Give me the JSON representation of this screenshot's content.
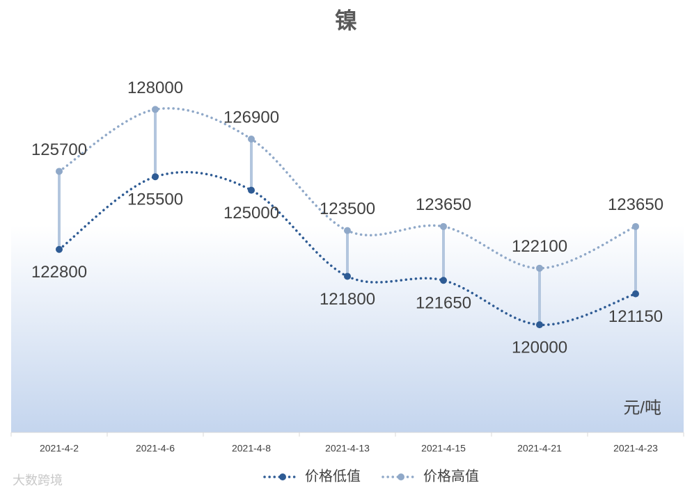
{
  "chart_data": {
    "type": "line",
    "title": "镍",
    "categories": [
      "2021-4-2",
      "2021-4-6",
      "2021-4-8",
      "2021-4-13",
      "2021-4-15",
      "2021-4-21",
      "2021-4-23"
    ],
    "series": [
      {
        "name": "价格低值",
        "color": "#2e5b94",
        "values": [
          122800,
          125500,
          125000,
          121800,
          121650,
          120000,
          121150
        ]
      },
      {
        "name": "价格高值",
        "color": "#8fa8c8",
        "values": [
          125700,
          128000,
          126900,
          123500,
          123650,
          122100,
          123650
        ]
      }
    ],
    "ylim": [
      116000,
      130000
    ],
    "annotation": "元/吨",
    "watermark": "大数跨境",
    "high_low_lines": true,
    "legend": "bottom"
  }
}
